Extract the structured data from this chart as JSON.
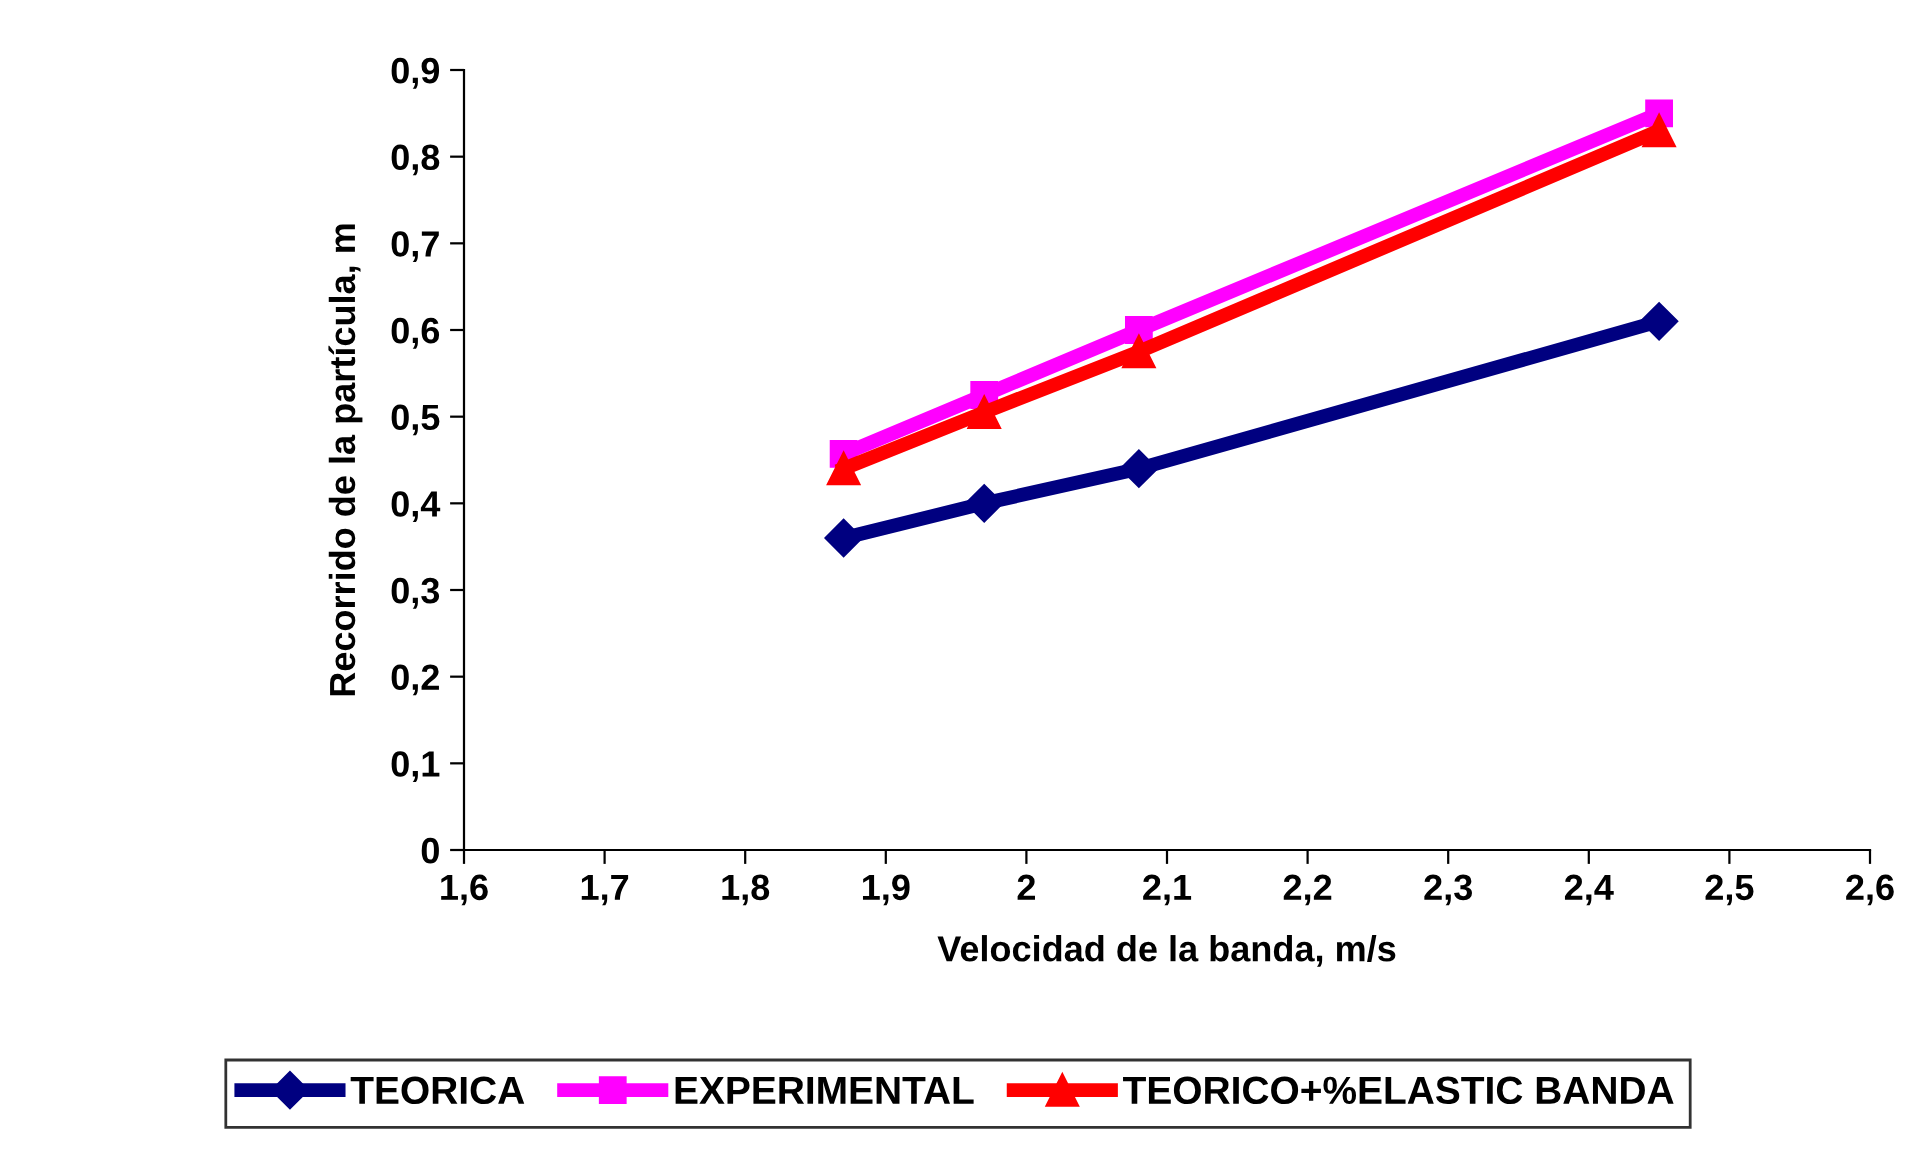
{
  "chart_data": {
    "type": "line",
    "xlabel": "Velocidad de la banda, m/s",
    "ylabel": "Recorrido de la partícula, m",
    "xlim": [
      1.6,
      2.6
    ],
    "xticks": [
      {
        "value": 1.6,
        "label": "1,6"
      },
      {
        "value": 1.7,
        "label": "1,7"
      },
      {
        "value": 1.8,
        "label": "1,8"
      },
      {
        "value": 1.9,
        "label": "1,9"
      },
      2,
      {
        "value": 2.1,
        "label": "2,1"
      },
      {
        "value": 2.2,
        "label": "2,2"
      },
      {
        "value": 2.3,
        "label": "2,3"
      },
      {
        "value": 2.4,
        "label": "2,4"
      },
      {
        "value": 2.5,
        "label": "2,5"
      },
      {
        "value": 2.6,
        "label": "2,6"
      }
    ],
    "ylim": [
      0,
      0.9
    ],
    "yticks": [
      0,
      {
        "value": 0.1,
        "label": "0,1"
      },
      {
        "value": 0.2,
        "label": "0,2"
      },
      {
        "value": 0.3,
        "label": "0,3"
      },
      {
        "value": 0.4,
        "label": "0,4"
      },
      {
        "value": 0.5,
        "label": "0,5"
      },
      {
        "value": 0.6,
        "label": "0,6"
      },
      {
        "value": 0.7,
        "label": "0,7"
      },
      {
        "value": 0.8,
        "label": "0,8"
      },
      {
        "value": 0.9,
        "label": "0,9"
      }
    ],
    "x": [
      1.87,
      1.97,
      2.08,
      2.45
    ],
    "series": [
      {
        "name": "TEORICA",
        "color": "#000080",
        "marker": "diamond",
        "values": [
          0.36,
          0.4,
          0.44,
          0.61
        ]
      },
      {
        "name": "EXPERIMENTAL",
        "color": "#ff00ff",
        "marker": "square",
        "values": [
          0.457,
          0.525,
          0.6,
          0.85
        ]
      },
      {
        "name": "TEORICO+%ELASTIC BANDA",
        "color": "#ff0000",
        "marker": "triangle",
        "values": [
          0.44,
          0.505,
          0.575,
          0.83
        ]
      }
    ],
    "legend": "bottom",
    "grid": false,
    "line_style": "solid"
  }
}
